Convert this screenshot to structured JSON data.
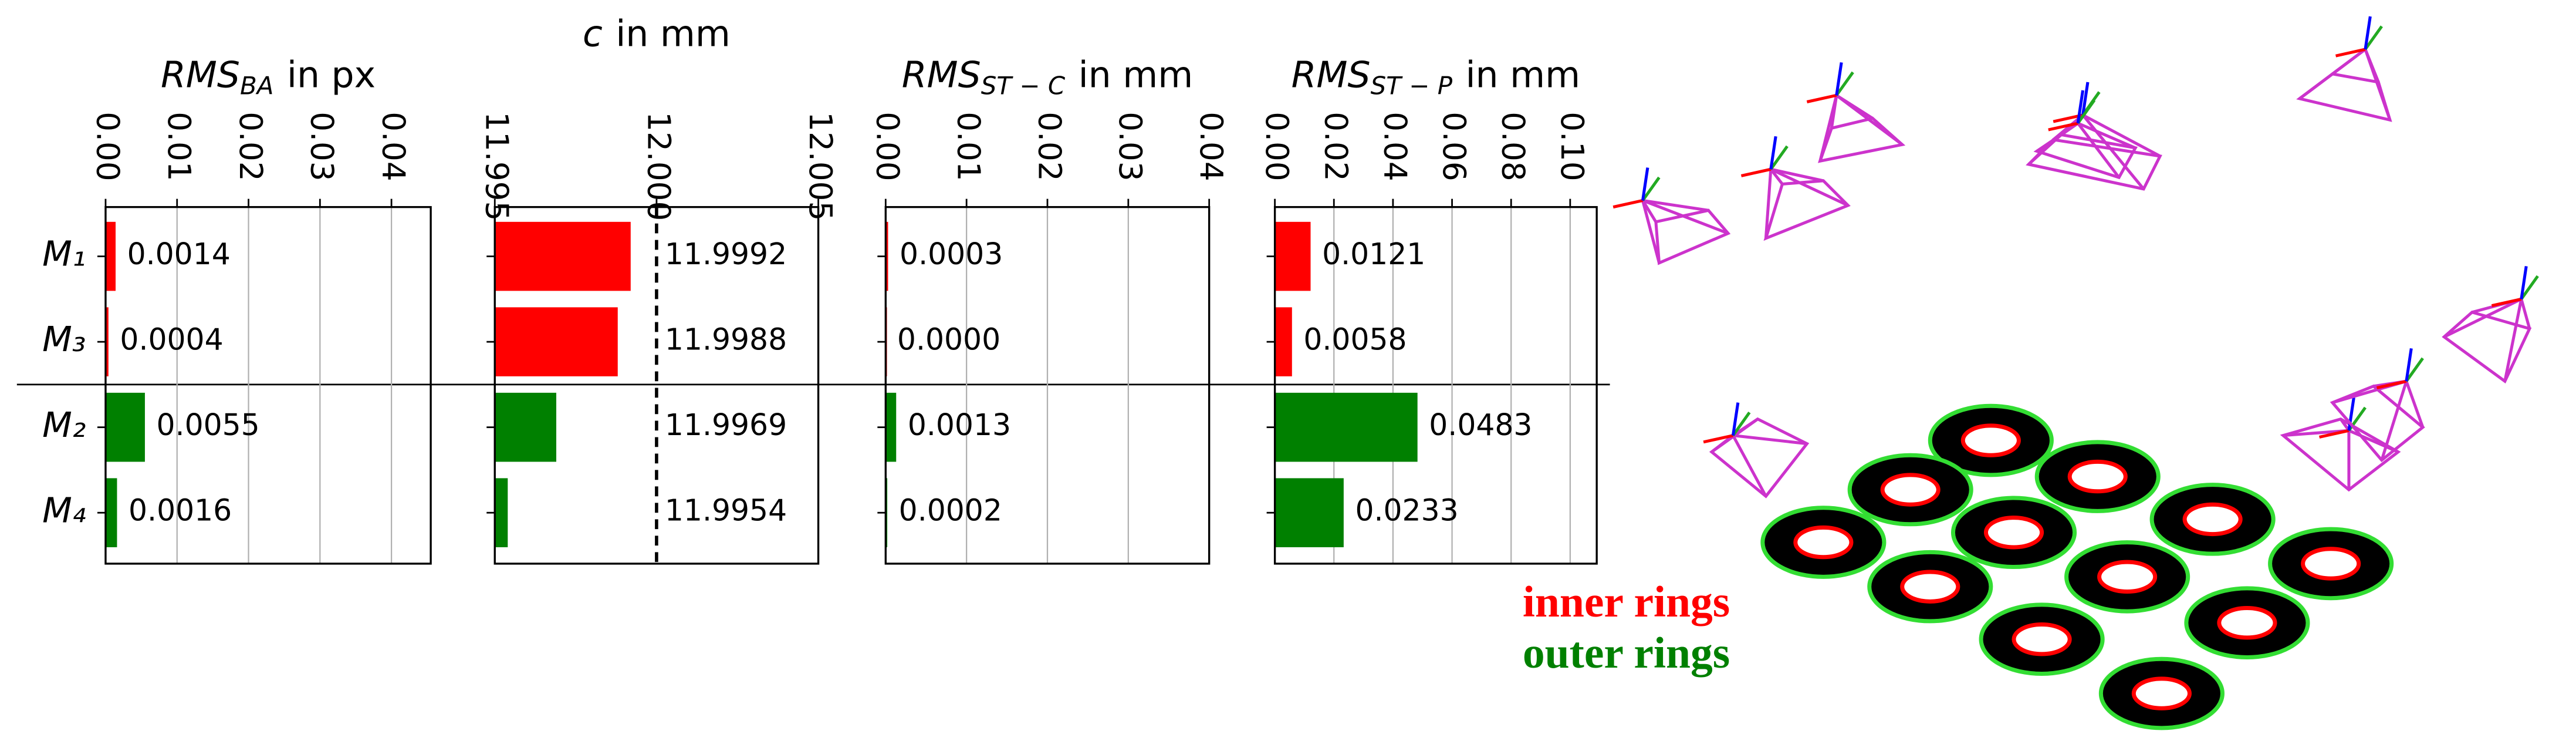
{
  "chart_data": [
    {
      "type": "bar",
      "orientation": "horizontal",
      "title": "RMS",
      "title_subscript": "BA",
      "title_unit": "in px",
      "categories": [
        "M₁",
        "M₃",
        "M₂",
        "M₄"
      ],
      "values": [
        0.0014,
        0.0004,
        0.0055,
        0.0016
      ],
      "value_labels": [
        "0.0014",
        "0.0004",
        "0.0055",
        "0.0016"
      ],
      "colors": [
        "#ff0000",
        "#ff0000",
        "#008000",
        "#008000"
      ],
      "xlim": [
        0,
        0.0455
      ],
      "xticks": [
        {
          "value": 0,
          "label": "0.00"
        },
        {
          "value": 0.01,
          "label": "0.01"
        },
        {
          "value": 0.02,
          "label": "0.02"
        },
        {
          "value": 0.03,
          "label": "0.03"
        },
        {
          "value": 0.04,
          "label": "0.04"
        }
      ],
      "grid": true
    },
    {
      "type": "bar",
      "orientation": "horizontal",
      "title": "c",
      "title_unit": "in mm",
      "values": [
        11.9992,
        11.9988,
        11.9969,
        11.9954
      ],
      "colors": [
        "#ff0000",
        "#ff0000",
        "#008000",
        "#008000"
      ],
      "xlim": [
        11.995,
        12.005
      ],
      "xticks": [
        11.995,
        {
          "value": 12,
          "label": "12.000"
        },
        12.005
      ],
      "reference": 12,
      "grid": false
    },
    {
      "type": "bar",
      "orientation": "horizontal",
      "title": "RMS",
      "title_subscript": "ST − C",
      "title_unit": "in mm",
      "values": [
        0.0003,
        0,
        0.0013,
        0.0002
      ],
      "value_labels": [
        "0.0003",
        "0.0000",
        "0.0013",
        "0.0002"
      ],
      "colors": [
        "#ff0000",
        "#ff0000",
        "#008000",
        "#008000"
      ],
      "xlim": [
        0,
        0.04
      ],
      "xticks": [
        {
          "value": 0,
          "label": "0.00"
        },
        {
          "value": 0.01,
          "label": "0.01"
        },
        {
          "value": 0.02,
          "label": "0.02"
        },
        {
          "value": 0.03,
          "label": "0.03"
        },
        {
          "value": 0.04,
          "label": "0.04"
        }
      ],
      "grid": true
    },
    {
      "type": "bar",
      "orientation": "horizontal",
      "title": "RMS",
      "title_subscript": "ST − P",
      "title_unit": "in mm",
      "values": [
        0.0121,
        0.0058,
        0.0483,
        0.0233
      ],
      "colors": [
        "#ff0000",
        "#ff0000",
        "#008000",
        "#008000"
      ],
      "xlim": [
        0,
        0.109
      ],
      "xticks": [
        {
          "value": 0,
          "label": "0.00"
        },
        {
          "value": 0.02,
          "label": "0.02"
        },
        {
          "value": 0.04,
          "label": "0.04"
        },
        {
          "value": 0.06,
          "label": "0.06"
        },
        {
          "value": 0.08,
          "label": "0.08"
        },
        {
          "value": 0.1,
          "label": "0.10"
        }
      ],
      "grid": true
    }
  ],
  "illustration": {
    "legend": [
      "inner rings",
      "outer rings"
    ]
  }
}
